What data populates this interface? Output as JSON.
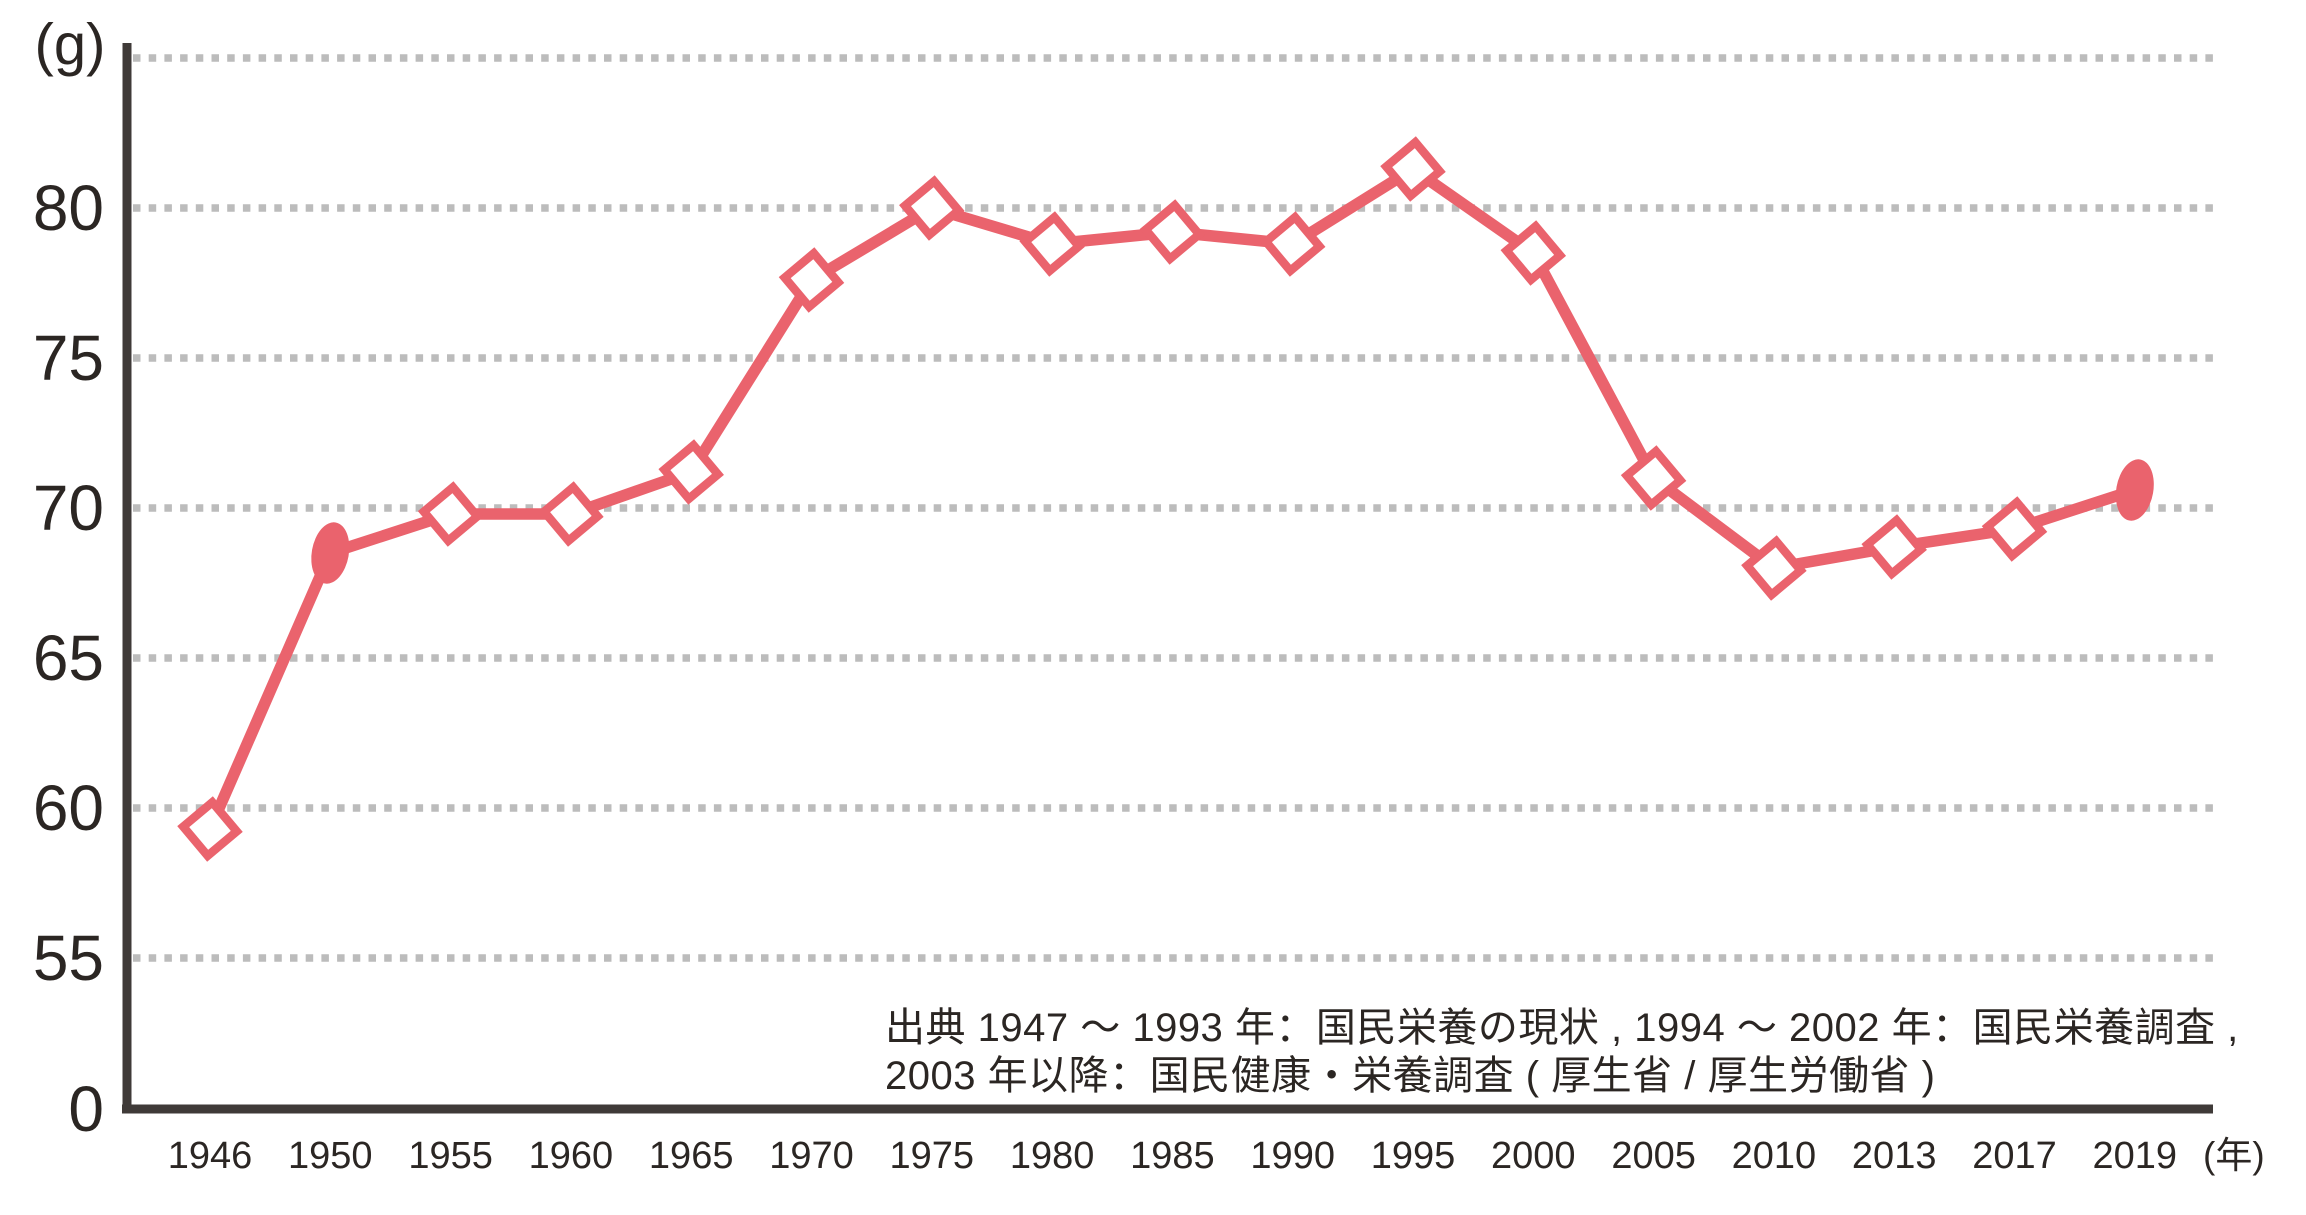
{
  "chart_data": {
    "type": "line",
    "title": "",
    "y_unit_label": "(g)",
    "x_unit_label": "(年)",
    "categories": [
      "1946",
      "1950",
      "1955",
      "1960",
      "1965",
      "1970",
      "1975",
      "1980",
      "1985",
      "1990",
      "1995",
      "2000",
      "2005",
      "2010",
      "2013",
      "2017",
      "2019"
    ],
    "series": [
      {
        "values": [
          59.3,
          68.5,
          69.8,
          69.8,
          71.2,
          77.6,
          80.0,
          78.8,
          79.2,
          78.8,
          81.3,
          78.5,
          71.0,
          68.0,
          68.7,
          69.3,
          70.6
        ],
        "markers": [
          "diamond",
          "ellipse",
          "diamond",
          "diamond",
          "diamond",
          "diamond",
          "diamond",
          "diamond",
          "diamond",
          "diamond",
          "diamond",
          "diamond",
          "diamond",
          "diamond",
          "diamond",
          "diamond",
          "ellipse"
        ]
      }
    ],
    "y_ticks": [
      {
        "label": "0",
        "value": 0
      },
      {
        "label": "55",
        "value": 55
      },
      {
        "label": "60",
        "value": 60
      },
      {
        "label": "65",
        "value": 65
      },
      {
        "label": "70",
        "value": 70
      },
      {
        "label": "75",
        "value": 75
      },
      {
        "label": "80",
        "value": 80
      }
    ],
    "gridline_values": [
      55,
      60,
      65,
      70,
      75,
      80,
      85
    ],
    "ylim": [
      55,
      85
    ],
    "axis_break_between_0_and_55": true,
    "grid": "dotted-horizontal",
    "legend_position": "none",
    "source": {
      "line1": "出典 1947 ～ 1993 年：国民栄養の現状 , 1994 ～ 2002 年：国民栄養調査 ,",
      "line2": "2003 年以降：国民健康・栄養調査 ( 厚生省 / 厚生労働省 )"
    },
    "colors": {
      "line": "#ea636d",
      "grid": "#bcbcbc",
      "axis": "#3f3a38",
      "text": "#2b2623"
    }
  }
}
